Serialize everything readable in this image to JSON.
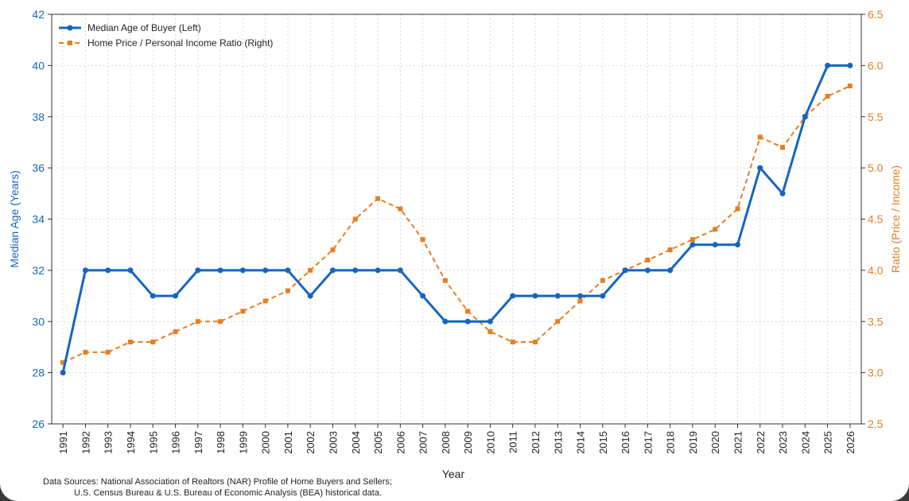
{
  "chart_data": {
    "type": "line",
    "x": [
      "1991",
      "1992",
      "1993",
      "1994",
      "1995",
      "1996",
      "1997",
      "1998",
      "1999",
      "2000",
      "2001",
      "2002",
      "2003",
      "2004",
      "2005",
      "2006",
      "2007",
      "2008",
      "2009",
      "2010",
      "2011",
      "2012",
      "2013",
      "2014",
      "2015",
      "2016",
      "2017",
      "2018",
      "2019",
      "2020",
      "2021",
      "2022",
      "2023",
      "2024",
      "2025",
      "2026"
    ],
    "xlabel": "Year",
    "ylabel_left": "Median Age (Years)",
    "ylabel_right": "Ratio (Price / Income)",
    "ylim_left": [
      26,
      42
    ],
    "ylim_right": [
      2.5,
      6.5
    ],
    "yticks_left": [
      "26",
      "28",
      "30",
      "32",
      "34",
      "36",
      "38",
      "40",
      "42"
    ],
    "yticks_right": [
      "2.5",
      "3.0",
      "3.5",
      "4.0",
      "4.5",
      "5.0",
      "5.5",
      "6.0",
      "6.5"
    ],
    "grid": true,
    "legend_position": "top-left",
    "series": [
      {
        "name": "Median Age of Buyer (Left)",
        "axis": "left",
        "color": "#1565C0",
        "line_style": "solid",
        "marker": "circle",
        "values": [
          28,
          32,
          32,
          32,
          31,
          31,
          32,
          32,
          32,
          32,
          32,
          31,
          32,
          32,
          32,
          32,
          31,
          30,
          30,
          30,
          31,
          31,
          31,
          31,
          31,
          32,
          32,
          32,
          33,
          33,
          33,
          36,
          35,
          38,
          40,
          40
        ]
      },
      {
        "name": "Home Price / Personal Income Ratio (Right)",
        "axis": "right",
        "color": "#E67E22",
        "line_style": "dashed",
        "marker": "square",
        "values": [
          3.1,
          3.2,
          3.2,
          3.3,
          3.3,
          3.4,
          3.5,
          3.5,
          3.6,
          3.7,
          3.8,
          4.0,
          4.2,
          4.5,
          4.7,
          4.6,
          4.3,
          3.9,
          3.6,
          3.4,
          3.3,
          3.3,
          3.5,
          3.7,
          3.9,
          4.0,
          4.1,
          4.2,
          4.3,
          4.4,
          4.6,
          5.3,
          5.2,
          5.5,
          5.7,
          5.8
        ]
      }
    ]
  },
  "footnote": {
    "line1": "Data Sources: National Association of Realtors (NAR) Profile of Home Buyers and Sellers;",
    "line2": "U.S. Census Bureau & U.S. Bureau of Economic Analysis (BEA) historical data."
  }
}
